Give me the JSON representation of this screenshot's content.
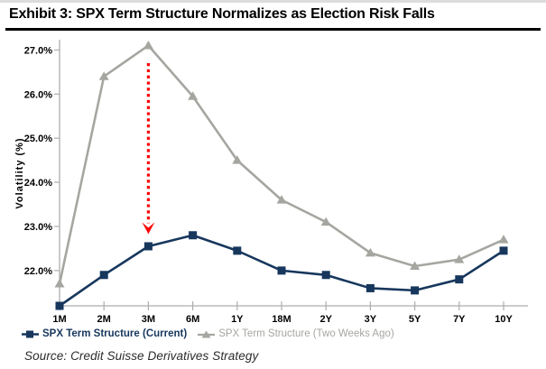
{
  "title": "Exhibit 3: SPX Term Structure Normalizes as Election Risk Falls",
  "source": "Source: Credit Suisse Derivatives Strategy",
  "colors": {
    "current": "#17375D",
    "two_weeks_ago": "#A6A6A1",
    "arrow": "#FF0000",
    "axis": "#ADADAD",
    "tick_text": "#000000"
  },
  "chart_data": {
    "type": "line",
    "title": "Exhibit 3: SPX Term Structure Normalizes as Election Risk Falls",
    "xlabel": "",
    "ylabel": "Volatility (%)",
    "categories": [
      "1M",
      "2M",
      "3M",
      "6M",
      "1Y",
      "18M",
      "2Y",
      "3Y",
      "5Y",
      "7Y",
      "10Y"
    ],
    "series": [
      {
        "name": "SPX Term Structure (Current)",
        "marker": "square",
        "color_key": "current",
        "values": [
          21.2,
          21.9,
          22.55,
          22.8,
          22.45,
          22.0,
          21.9,
          21.6,
          21.55,
          21.8,
          22.45
        ]
      },
      {
        "name": "SPX Term Structure (Two Weeks Ago)",
        "marker": "triangle",
        "color_key": "two_weeks_ago",
        "values": [
          21.7,
          26.4,
          27.1,
          25.95,
          24.5,
          23.6,
          23.1,
          22.4,
          22.1,
          22.25,
          22.7
        ]
      }
    ],
    "ytick_labels": [
      "22.0%",
      "23.0%",
      "24.0%",
      "25.0%",
      "26.0%",
      "27.0%"
    ],
    "ylim": [
      21.2,
      27.2
    ],
    "grid": false,
    "legend_position": "bottom-left",
    "annotation": {
      "type": "arrow-down",
      "category": "3M",
      "from_value": 26.7,
      "to_value": 22.85,
      "color_key": "arrow"
    }
  }
}
